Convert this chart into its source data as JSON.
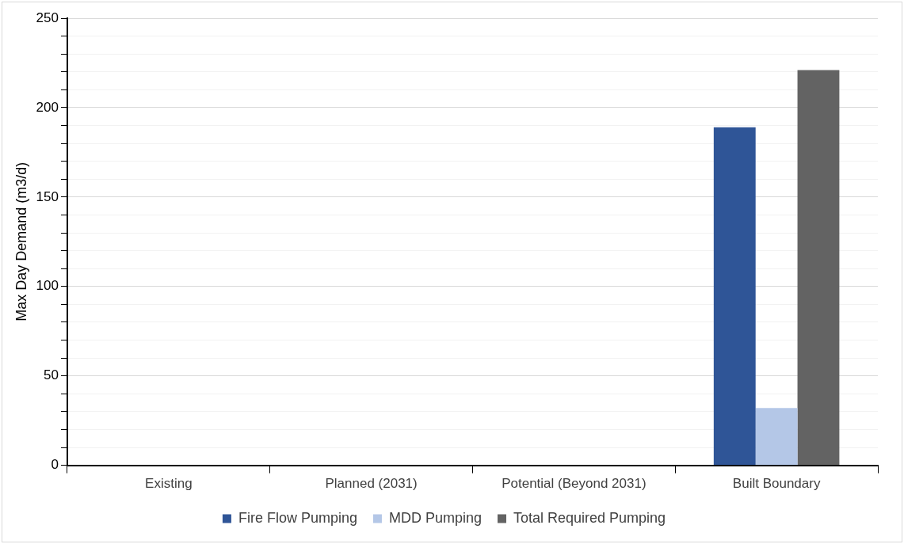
{
  "chart_data": {
    "type": "bar",
    "ylabel": "Max Day Demand (m3/d)",
    "categories": [
      "Existing",
      "Planned (2031)",
      "Potential (Beyond 2031)",
      "Built Boundary"
    ],
    "series": [
      {
        "name": "Fire Flow Pumping",
        "color": "#2f5597",
        "values": [
          null,
          null,
          null,
          189
        ]
      },
      {
        "name": "MDD Pumping",
        "color": "#b4c7e7",
        "values": [
          null,
          null,
          null,
          32
        ]
      },
      {
        "name": "Total Required Pumping",
        "color": "#636363",
        "values": [
          null,
          null,
          null,
          221
        ]
      }
    ],
    "ylim": [
      0,
      250
    ],
    "yticks": [
      0,
      {
        "value": 10,
        "label": null
      },
      {
        "value": 20,
        "label": null
      },
      {
        "value": 30,
        "label": null
      },
      {
        "value": 40,
        "label": null
      },
      50,
      {
        "value": 60,
        "label": null
      },
      {
        "value": 70,
        "label": null
      },
      {
        "value": 80,
        "label": null
      },
      {
        "value": 90,
        "label": null
      },
      100,
      {
        "value": 110,
        "label": null
      },
      {
        "value": 120,
        "label": null
      },
      {
        "value": 130,
        "label": null
      },
      {
        "value": 140,
        "label": null
      },
      150,
      {
        "value": 160,
        "label": null
      },
      {
        "value": 170,
        "label": null
      },
      {
        "value": 180,
        "label": null
      },
      {
        "value": 190,
        "label": null
      },
      200,
      {
        "value": 210,
        "label": null
      },
      {
        "value": 220,
        "label": null
      },
      {
        "value": 230,
        "label": null
      },
      {
        "value": 240,
        "label": null
      },
      250
    ],
    "grid": "y",
    "legend": "bottom"
  }
}
